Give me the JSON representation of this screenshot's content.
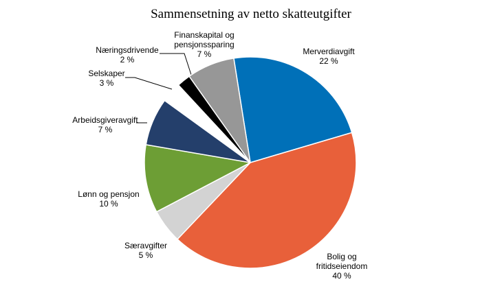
{
  "chart_data": {
    "type": "pie",
    "title": "Sammensetning av netto skatteutgifter",
    "categories": [
      "Merverdiavgift",
      "Bolig og fritidseiendom",
      "Særavgifter",
      "Lønn og pensjon",
      "Arbeidsgiveravgift",
      "Selskaper",
      "Næringsdrivende",
      "Finanskapital og pensjonssparing"
    ],
    "values": [
      22,
      40,
      5,
      10,
      7,
      3,
      2,
      7
    ],
    "value_labels": [
      "22 %",
      "40 %",
      "5 %",
      "10 %",
      "7 %",
      "3 %",
      "2 %",
      "7 %"
    ],
    "colors": [
      "#0070b8",
      "#e8603a",
      "#d3d3d3",
      "#6d9e35",
      "#243f6b",
      "#ffffff",
      "#000000",
      "#979797"
    ]
  }
}
